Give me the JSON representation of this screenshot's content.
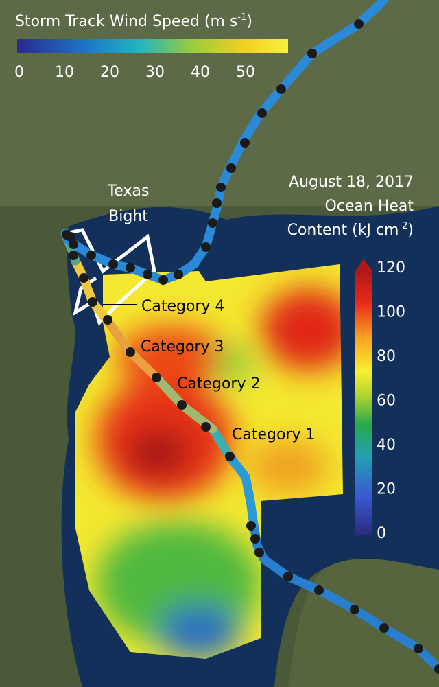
{
  "wind_legend": {
    "title": "Storm Track Wind Speed (m s",
    "title_sup": "-1",
    "title_end": ")",
    "ticks": [
      "0",
      "10",
      "20",
      "30",
      "40",
      "50"
    ]
  },
  "heat_legend": {
    "date": "August 18, 2017",
    "line1": "Ocean Heat",
    "line2": "Content (kJ cm",
    "line2_sup": "-2",
    "line2_end": ")",
    "ticks": [
      "120",
      "100",
      "80",
      "60",
      "40",
      "20",
      "0"
    ]
  },
  "labels": {
    "region_line1": "Texas",
    "region_line2": "Bight",
    "cat4": "Category 4",
    "cat3": "Category 3",
    "cat2": "Category 2",
    "cat1": "Category 1"
  }
}
